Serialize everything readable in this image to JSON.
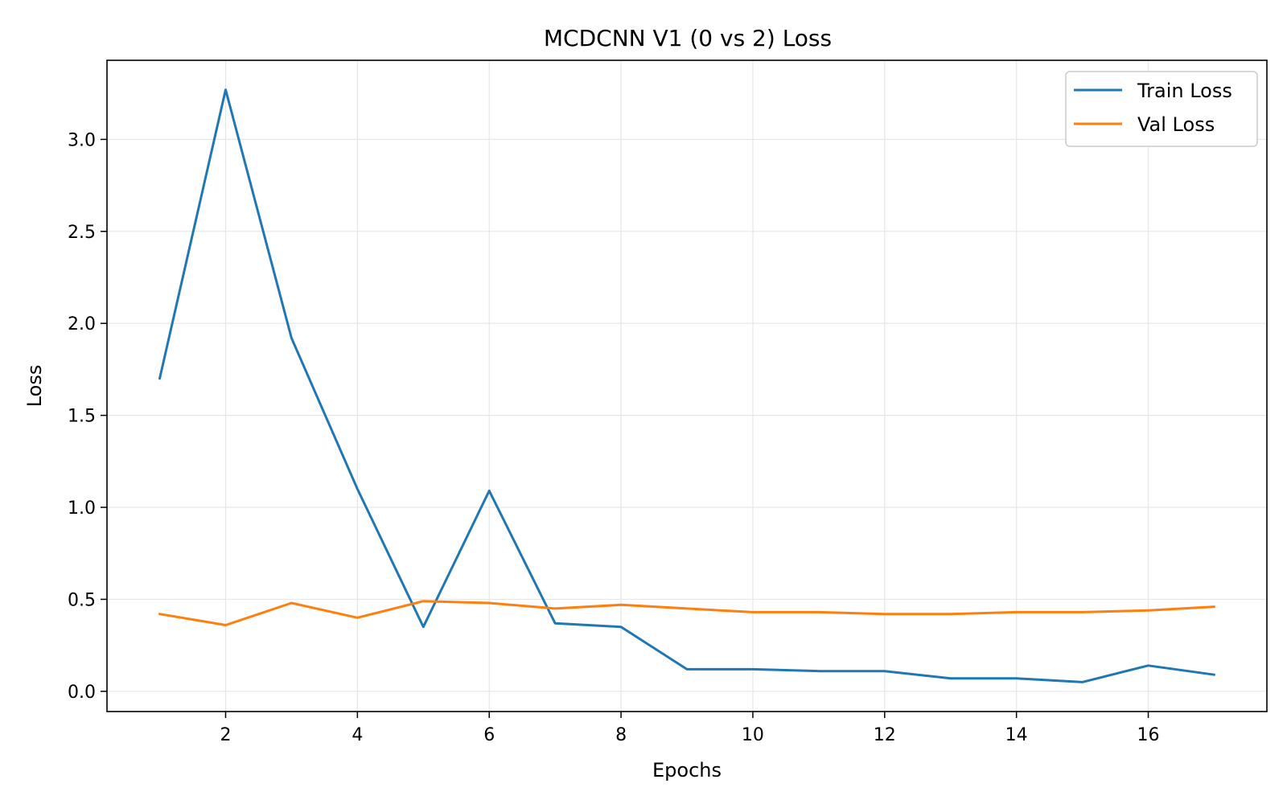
{
  "chart_data": {
    "type": "line",
    "title": "MCDCNN V1 (0 vs 2) Loss",
    "xlabel": "Epochs",
    "ylabel": "Loss",
    "x": [
      1,
      2,
      3,
      4,
      5,
      6,
      7,
      8,
      9,
      10,
      11,
      12,
      13,
      14,
      15,
      16,
      17
    ],
    "xlim": [
      0.2,
      17.8
    ],
    "ylim": [
      -0.11,
      3.43
    ],
    "xticks": [
      2,
      4,
      6,
      8,
      10,
      12,
      14,
      16
    ],
    "yticks": [
      0.0,
      0.5,
      1.0,
      1.5,
      2.0,
      2.5,
      3.0
    ],
    "xtick_labels": [
      "2",
      "4",
      "6",
      "8",
      "10",
      "12",
      "14",
      "16"
    ],
    "ytick_labels": [
      "0.0",
      "0.5",
      "1.0",
      "1.5",
      "2.0",
      "2.5",
      "3.0"
    ],
    "grid": true,
    "legend_position": "top-right",
    "series": [
      {
        "name": "Train Loss",
        "color": "#1f77b4",
        "values": [
          1.7,
          3.27,
          1.92,
          1.1,
          0.35,
          1.09,
          0.37,
          0.35,
          0.12,
          0.12,
          0.11,
          0.11,
          0.07,
          0.07,
          0.05,
          0.14,
          0.09
        ]
      },
      {
        "name": "Val Loss",
        "color": "#ff7f0e",
        "values": [
          0.42,
          0.36,
          0.48,
          0.4,
          0.49,
          0.48,
          0.45,
          0.47,
          0.45,
          0.43,
          0.43,
          0.42,
          0.42,
          0.43,
          0.43,
          0.44,
          0.46
        ]
      }
    ]
  }
}
